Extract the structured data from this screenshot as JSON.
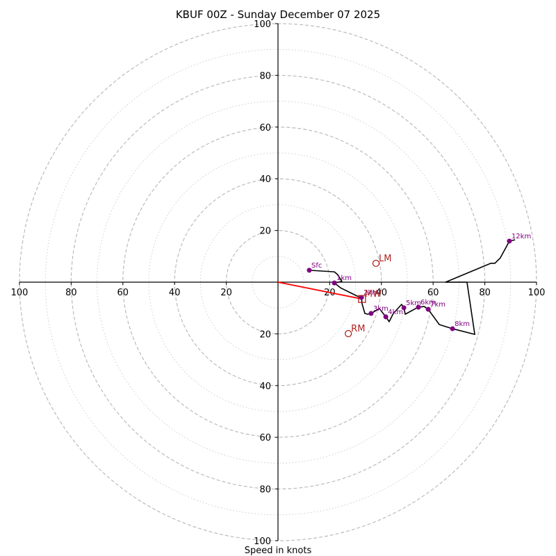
{
  "chart_data": {
    "type": "line",
    "subtype": "hodograph",
    "title": "KBUF 00Z - Sunday December 07 2025",
    "xlabel": "Speed in knots",
    "ylabel": "",
    "axis_range": [
      -100,
      100
    ],
    "ring_major_step": 20,
    "ring_minor_step": 10,
    "tick_values": [
      20,
      40,
      60,
      80,
      100
    ],
    "tick_labels": [
      "20",
      "40",
      "60",
      "80",
      "100"
    ],
    "grid": true,
    "wind_path_uv_knots": [
      [
        12.1,
        4.6
      ],
      [
        21.8,
        4.0
      ],
      [
        23.1,
        2.9
      ],
      [
        24.7,
        0.3
      ],
      [
        21.8,
        -0.3
      ],
      [
        24.2,
        -2.2
      ],
      [
        31.7,
        -5.9
      ],
      [
        32.3,
        -5.9
      ],
      [
        32.5,
        -8.3
      ],
      [
        33.6,
        -12.1
      ],
      [
        34.7,
        -12.4
      ],
      [
        36.0,
        -12.1
      ],
      [
        39.2,
        -10.2
      ],
      [
        41.7,
        -13.4
      ],
      [
        43.0,
        -15.3
      ],
      [
        44.6,
        -12.1
      ],
      [
        47.8,
        -8.6
      ],
      [
        48.7,
        -9.9
      ],
      [
        49.2,
        -12.4
      ],
      [
        53.8,
        -9.9
      ],
      [
        54.3,
        -9.7
      ],
      [
        56.5,
        -9.4
      ],
      [
        58.1,
        -10.5
      ],
      [
        62.4,
        -16.4
      ],
      [
        67.5,
        -18.0
      ],
      [
        76.1,
        -20.2
      ],
      [
        73.1,
        0.0
      ],
      [
        64.8,
        0.0
      ],
      [
        82.3,
        7.3
      ],
      [
        83.9,
        7.3
      ],
      [
        86.0,
        9.4
      ],
      [
        89.5,
        15.9
      ],
      [
        91.7,
        16.4
      ]
    ],
    "height_markers": [
      {
        "label": "Sfc",
        "u": 12.1,
        "v": 4.6
      },
      {
        "label": "1km",
        "u": 21.8,
        "v": -0.3
      },
      {
        "label": "2km",
        "u": 32.3,
        "v": -5.9
      },
      {
        "label": "3km",
        "u": 36.0,
        "v": -12.1
      },
      {
        "label": "4km",
        "u": 41.7,
        "v": -13.4
      },
      {
        "label": "5km",
        "u": 48.7,
        "v": -9.9
      },
      {
        "label": "6km",
        "u": 54.3,
        "v": -9.7
      },
      {
        "label": "7km",
        "u": 58.1,
        "v": -10.5
      },
      {
        "label": "8km",
        "u": 67.5,
        "v": -18.0
      },
      {
        "label": "12km",
        "u": 89.5,
        "v": 15.9
      }
    ],
    "storm_motion": {
      "LM": {
        "label": "LM",
        "u": 37.9,
        "v": 7.3
      },
      "RM": {
        "label": "RM",
        "u": 27.2,
        "v": -19.9
      },
      "MW": {
        "label": "MW",
        "u": 32.5,
        "v": -6.5
      }
    },
    "mean_wind_vector": {
      "from": [
        0,
        0
      ],
      "to": [
        32.5,
        -6.5
      ]
    },
    "colors": {
      "path": "#000000",
      "height_marker": "#800080",
      "storm_motion": "#b22222",
      "mean_wind_vector": "#ff0000",
      "ring": "#bbbbbb",
      "minor_ring": "#cccccc"
    }
  }
}
